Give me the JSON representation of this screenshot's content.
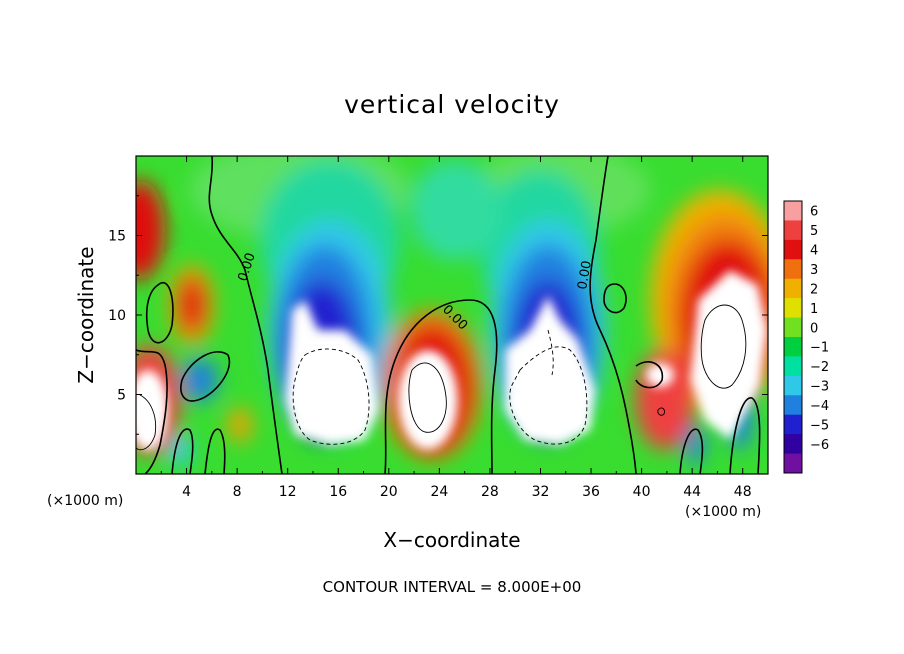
{
  "chart_data": {
    "type": "heatmap",
    "title": "vertical velocity",
    "xlabel": "X−coordinate",
    "ylabel": "Z−coordinate",
    "x_unit_left": "(×1000 m)",
    "x_unit_right": "(×1000 m)",
    "xlim": [
      0,
      50
    ],
    "ylim": [
      0,
      20
    ],
    "x_ticks": [
      "4",
      "8",
      "12",
      "16",
      "20",
      "24",
      "28",
      "32",
      "36",
      "40",
      "44",
      "48"
    ],
    "y_ticks": [
      "5",
      "10",
      "15"
    ],
    "colorbar": {
      "min": -6,
      "max": 6,
      "levels": [
        "6",
        "5",
        "4",
        "3",
        "2",
        "1",
        "0",
        "−1",
        "−2",
        "−3",
        "−4",
        "−5",
        "−6"
      ],
      "colors": [
        "#f8a0a0",
        "#ef4040",
        "#e01010",
        "#f07010",
        "#f0b000",
        "#e0e000",
        "#70e020",
        "#00d040",
        "#00e0a0",
        "#30c8e8",
        "#2080e0",
        "#2020d0",
        "#3000a0",
        "#7010a0"
      ]
    },
    "contour_labels": [
      "0.00",
      "0.00",
      "0.00"
    ],
    "footer": "CONTOUR INTERVAL = 8.000E+00"
  }
}
